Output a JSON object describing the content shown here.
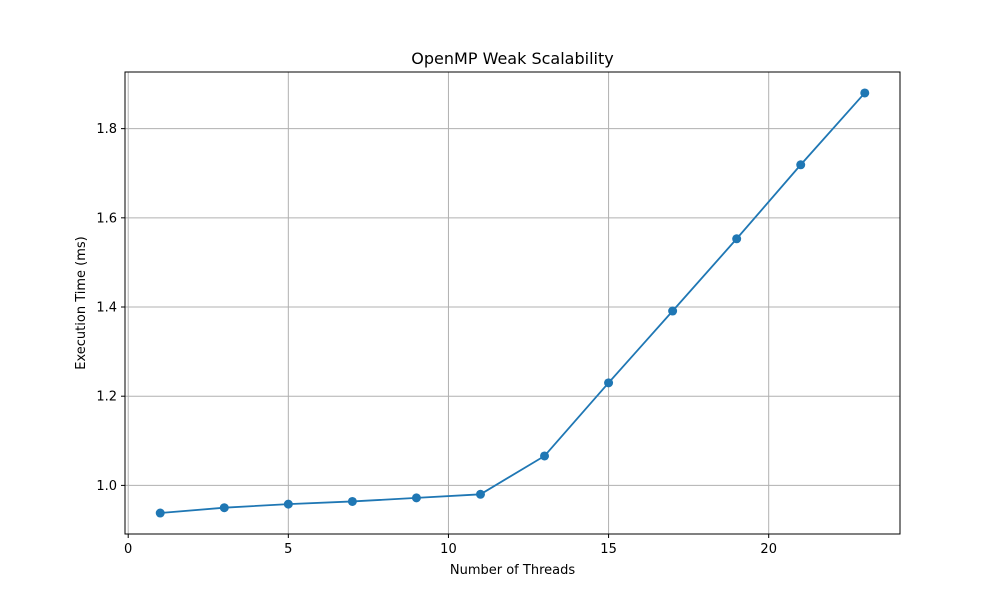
{
  "chart_data": {
    "type": "line",
    "title": "OpenMP Weak Scalability",
    "xlabel": "Number of Threads",
    "ylabel": "Execution Time (ms)",
    "xlim": [
      -0.1,
      24.1
    ],
    "ylim": [
      0.891,
      1.927
    ],
    "xticks": [
      0,
      5,
      10,
      15,
      20
    ],
    "yticks": [
      1.0,
      1.2,
      1.4,
      1.6,
      1.8
    ],
    "grid": true,
    "color": "#1f77b4",
    "marker": "circle",
    "x": [
      1,
      3,
      5,
      7,
      9,
      11,
      13,
      15,
      17,
      19,
      21,
      23
    ],
    "y": [
      0.938,
      0.95,
      0.958,
      0.964,
      0.972,
      0.98,
      1.066,
      1.23,
      1.391,
      1.553,
      1.719,
      1.88
    ]
  }
}
